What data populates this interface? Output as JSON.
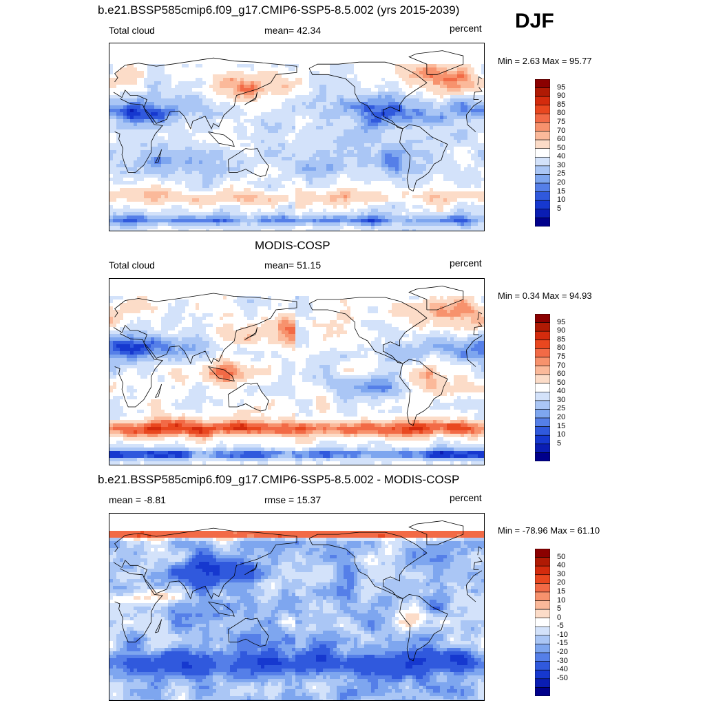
{
  "season": "DJF",
  "colors": {
    "pos_ramp": [
      "#ffffff",
      "#fcdcc8",
      "#fbb99a",
      "#f7926d",
      "#f26a46",
      "#e9471f",
      "#d42b0d",
      "#b01a04",
      "#8b0000"
    ],
    "neg_ramp": [
      "#ffffff",
      "#d3e2fa",
      "#aac6f5",
      "#7ea6ef",
      "#557fe8",
      "#3059dd",
      "#1638cf",
      "#0a1db3",
      "#00008b"
    ]
  },
  "panels": [
    {
      "title": "b.e21.BSSP585cmip6.f09_g17.CMIP6-SSP5-8.5.002 (yrs 2015-2039)",
      "left_label": "Total cloud",
      "center_label": "mean=  42.34",
      "right_label": "percent",
      "minmax": "Min =   2.63 Max =  95.77",
      "colorbar": [
        "95",
        "90",
        "85",
        "80",
        "75",
        "70",
        "60",
        "50",
        "40",
        "30",
        "25",
        "20",
        "15",
        "10",
        "5"
      ]
    },
    {
      "title": "MODIS-COSP",
      "left_label": "Total cloud",
      "center_label": "mean=  51.15",
      "right_label": "percent",
      "minmax": "Min =   0.34 Max =  94.93",
      "colorbar": [
        "95",
        "90",
        "85",
        "80",
        "75",
        "70",
        "60",
        "50",
        "40",
        "30",
        "25",
        "20",
        "15",
        "10",
        "5"
      ]
    },
    {
      "title": "b.e21.BSSP585cmip6.f09_g17.CMIP6-SSP5-8.5.002 - MODIS-COSP",
      "left_label": "mean =  -8.81",
      "center_label": "rmse =  15.37",
      "right_label": "percent",
      "minmax": "Min = -78.96 Max =  61.10",
      "colorbar": [
        "50",
        "40",
        "30",
        "20",
        "15",
        "10",
        "5",
        "0",
        "-5",
        "-10",
        "-15",
        "-20",
        "-30",
        "-40",
        "-50"
      ]
    }
  ]
}
